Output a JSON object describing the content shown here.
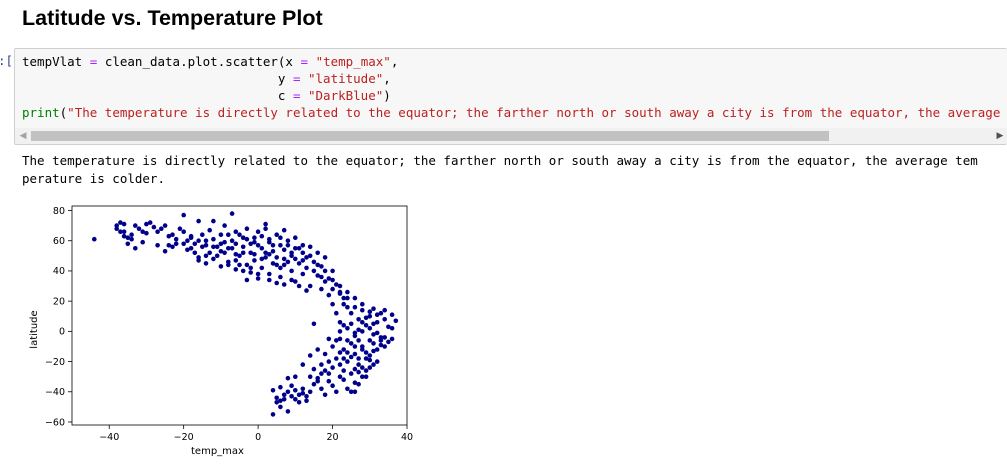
{
  "notebook": {
    "heading": "Latitude vs. Temperature Plot",
    "prompt_fragment": "]:",
    "code": {
      "line1": {
        "var": "tempVlat",
        "eq": "=",
        "call": "clean_data.plot.scatter(x",
        "eq2": "=",
        "arg": "\"temp_max\"",
        "end": ","
      },
      "line2": {
        "key": "y",
        "eq": "=",
        "arg": "\"latitude\"",
        "end": ","
      },
      "line3": {
        "key": "c",
        "eq": "=",
        "arg": "\"DarkBlue\"",
        "end": ")"
      },
      "line4": {
        "fn": "print",
        "paren": "(",
        "arg": "\"The temperature is directly related to the equator; the farther north or south away a city is from the equator, the average temperature is colder.\"",
        "end": ")"
      }
    },
    "output_line1": "The temperature is directly related to the equator; the farther north or south away a city is from the equator, the average tem",
    "output_line2": "perature is colder.",
    "scroll_left_icon": "◀",
    "scroll_right_icon": "▶"
  },
  "chart_data": {
    "type": "scatter",
    "xlabel": "temp_max",
    "ylabel": "latitude",
    "xlim": [
      -50,
      40
    ],
    "ylim": [
      -62,
      83
    ],
    "xticks": [
      -40,
      -20,
      0,
      20,
      40
    ],
    "xtick_labels": [
      "−40",
      "−20",
      "0",
      "20",
      "40"
    ],
    "yticks": [
      80,
      60,
      40,
      20,
      0,
      -20,
      -40,
      -60
    ],
    "ytick_labels": [
      "80",
      "60",
      "40",
      "20",
      "0",
      "−20",
      "−40",
      "−60"
    ],
    "color": "#00008b",
    "grid": false,
    "points": [
      [
        -44,
        61
      ],
      [
        -38,
        68
      ],
      [
        -37,
        72
      ],
      [
        -37,
        66
      ],
      [
        -36,
        71
      ],
      [
        -36,
        63
      ],
      [
        -35,
        62
      ],
      [
        -35,
        58
      ],
      [
        -34,
        64
      ],
      [
        -33,
        70
      ],
      [
        -33,
        55
      ],
      [
        -32,
        68
      ],
      [
        -31,
        66
      ],
      [
        -30,
        71
      ],
      [
        -29,
        72
      ],
      [
        -28,
        69
      ],
      [
        -27,
        66
      ],
      [
        -26,
        68
      ],
      [
        -25,
        70
      ],
      [
        -24,
        63
      ],
      [
        -23,
        64
      ],
      [
        -23,
        56
      ],
      [
        -22,
        58
      ],
      [
        -21,
        68
      ],
      [
        -20,
        66
      ],
      [
        -19,
        60
      ],
      [
        -19,
        54
      ],
      [
        -18,
        63
      ],
      [
        -17,
        58
      ],
      [
        -17,
        52
      ],
      [
        -16,
        49
      ],
      [
        -15,
        56
      ],
      [
        -14,
        60
      ],
      [
        -14,
        45
      ],
      [
        -13,
        52
      ],
      [
        -12,
        61
      ],
      [
        -12,
        48
      ],
      [
        -11,
        56
      ],
      [
        -10,
        64
      ],
      [
        -10,
        43
      ],
      [
        -9,
        70
      ],
      [
        -9,
        59
      ],
      [
        -9,
        52
      ],
      [
        -8,
        64
      ],
      [
        -8,
        46
      ],
      [
        -7,
        60
      ],
      [
        -7,
        55
      ],
      [
        -6,
        66
      ],
      [
        -6,
        41
      ],
      [
        -5,
        50
      ],
      [
        -4,
        62
      ],
      [
        -4,
        56
      ],
      [
        -3,
        68
      ],
      [
        -3,
        44
      ],
      [
        -2,
        52
      ],
      [
        -2,
        39
      ],
      [
        -1,
        59
      ],
      [
        -1,
        47
      ],
      [
        0,
        66
      ],
      [
        0,
        35
      ],
      [
        1,
        55
      ],
      [
        1,
        42
      ],
      [
        2,
        68
      ],
      [
        2,
        49
      ],
      [
        3,
        61
      ],
      [
        3,
        38
      ],
      [
        4,
        53
      ],
      [
        5,
        64
      ],
      [
        5,
        44
      ],
      [
        6,
        57
      ],
      [
        6,
        36
      ],
      [
        7,
        67
      ],
      [
        7,
        48
      ],
      [
        8,
        60
      ],
      [
        9,
        52
      ],
      [
        9,
        40
      ],
      [
        10,
        62
      ],
      [
        10,
        33
      ],
      [
        11,
        55
      ],
      [
        11,
        45
      ],
      [
        12,
        57
      ],
      [
        12,
        38
      ],
      [
        13,
        49
      ],
      [
        14,
        56
      ],
      [
        14,
        30
      ],
      [
        15,
        46
      ],
      [
        16,
        52
      ],
      [
        16,
        37
      ],
      [
        17,
        43
      ],
      [
        17,
        28
      ],
      [
        18,
        49
      ],
      [
        19,
        35
      ],
      [
        19,
        24
      ],
      [
        20,
        40
      ],
      [
        20,
        18
      ],
      [
        21,
        31
      ],
      [
        21,
        12
      ],
      [
        22,
        25
      ],
      [
        22,
        6
      ],
      [
        22,
        -5
      ],
      [
        23,
        18
      ],
      [
        23,
        -12
      ],
      [
        24,
        22
      ],
      [
        24,
        2
      ],
      [
        24,
        -20
      ],
      [
        25,
        12
      ],
      [
        25,
        -8
      ],
      [
        25,
        -28
      ],
      [
        26,
        16
      ],
      [
        26,
        -3
      ],
      [
        26,
        -15
      ],
      [
        27,
        8
      ],
      [
        27,
        -22
      ],
      [
        27,
        -35
      ],
      [
        28,
        14
      ],
      [
        28,
        0
      ],
      [
        28,
        -10
      ],
      [
        29,
        4
      ],
      [
        29,
        -18
      ],
      [
        29,
        -30
      ],
      [
        30,
        10
      ],
      [
        30,
        -6
      ],
      [
        30,
        -24
      ],
      [
        31,
        15
      ],
      [
        31,
        -2
      ],
      [
        31,
        -13
      ],
      [
        32,
        6
      ],
      [
        32,
        -20
      ],
      [
        33,
        12
      ],
      [
        33,
        -4
      ],
      [
        34,
        8
      ],
      [
        34,
        -10
      ],
      [
        35,
        3
      ],
      [
        36,
        11
      ],
      [
        36,
        -5
      ],
      [
        37,
        7
      ],
      [
        15,
        5
      ],
      [
        14,
        -16
      ],
      [
        12,
        -22
      ],
      [
        10,
        -30
      ],
      [
        9,
        -36
      ],
      [
        8,
        -40
      ],
      [
        7,
        -45
      ],
      [
        6,
        -50
      ],
      [
        5,
        -47
      ],
      [
        4,
        -55
      ],
      [
        8,
        -53
      ],
      [
        11,
        -42
      ],
      [
        12,
        -38
      ],
      [
        16,
        -33
      ],
      [
        18,
        -26
      ],
      [
        19,
        -28
      ],
      [
        20,
        -36
      ],
      [
        21,
        -40
      ],
      [
        22,
        -30
      ],
      [
        23,
        -32
      ],
      [
        24,
        -38
      ],
      [
        25,
        -40
      ],
      [
        26,
        -34
      ],
      [
        18,
        -42
      ],
      [
        17,
        -38
      ],
      [
        19,
        -33
      ],
      [
        13,
        -46
      ],
      [
        11,
        -47
      ],
      [
        10,
        -45
      ],
      [
        6,
        -46
      ],
      [
        16,
        -12
      ],
      [
        15,
        -25
      ],
      [
        14,
        -30
      ],
      [
        20,
        -10
      ],
      [
        21,
        -18
      ],
      [
        19,
        -5
      ],
      [
        17,
        -22
      ],
      [
        18,
        -15
      ],
      [
        -12,
        73
      ],
      [
        -7,
        78
      ],
      [
        -20,
        77
      ],
      [
        -16,
        73
      ],
      [
        2,
        71
      ],
      [
        -1,
        62
      ],
      [
        -5,
        64
      ],
      [
        -2,
        58
      ],
      [
        4,
        57
      ],
      [
        7,
        54
      ],
      [
        9,
        50
      ],
      [
        12,
        47
      ],
      [
        13,
        42
      ],
      [
        15,
        40
      ],
      [
        17,
        36
      ],
      [
        18,
        33
      ],
      [
        20,
        28
      ],
      [
        22,
        26
      ],
      [
        23,
        22
      ],
      [
        24,
        16
      ],
      [
        25,
        5
      ],
      [
        26,
        -1
      ],
      [
        27,
        -6
      ],
      [
        28,
        -12
      ],
      [
        29,
        -14
      ],
      [
        30,
        -16
      ],
      [
        31,
        -8
      ],
      [
        32,
        -12
      ],
      [
        33,
        -6
      ],
      [
        24,
        -6
      ],
      [
        25,
        -17
      ],
      [
        26,
        -25
      ],
      [
        27,
        -27
      ],
      [
        28,
        -24
      ],
      [
        29,
        -26
      ],
      [
        30,
        -19
      ],
      [
        31,
        -22
      ],
      [
        23,
        -18
      ],
      [
        22,
        -22
      ],
      [
        24,
        -14
      ],
      [
        26,
        -10
      ],
      [
        27,
        1
      ],
      [
        28,
        6
      ],
      [
        29,
        9
      ],
      [
        30,
        2
      ],
      [
        31,
        5
      ],
      [
        32,
        -1
      ],
      [
        33,
        -9
      ],
      [
        34,
        -4
      ],
      [
        35,
        -7
      ],
      [
        36,
        2
      ],
      [
        -18,
        55
      ],
      [
        -14,
        57
      ],
      [
        -11,
        50
      ],
      [
        -8,
        44
      ],
      [
        -6,
        47
      ],
      [
        -4,
        40
      ],
      [
        -2,
        42
      ],
      [
        0,
        38
      ],
      [
        3,
        34
      ],
      [
        5,
        32
      ],
      [
        7,
        31
      ],
      [
        9,
        34
      ],
      [
        11,
        30
      ],
      [
        13,
        27
      ],
      [
        -3,
        34
      ],
      [
        -10,
        58
      ],
      [
        -15,
        64
      ],
      [
        -13,
        67
      ],
      [
        -6,
        58
      ],
      [
        -3,
        61
      ],
      [
        1,
        63
      ],
      [
        3,
        59
      ],
      [
        6,
        62
      ],
      [
        8,
        57
      ],
      [
        10,
        55
      ],
      [
        4,
        45
      ],
      [
        6,
        42
      ],
      [
        8,
        46
      ],
      [
        2,
        52
      ],
      [
        0,
        57
      ],
      [
        -4,
        52
      ],
      [
        -8,
        55
      ],
      [
        -12,
        56
      ],
      [
        -16,
        60
      ],
      [
        -25,
        53
      ],
      [
        -27,
        57
      ],
      [
        -30,
        65
      ],
      [
        -34,
        61
      ],
      [
        -36,
        66
      ],
      [
        -38,
        70
      ],
      [
        -31,
        59
      ],
      [
        -24,
        57
      ],
      [
        -22,
        61
      ],
      [
        -20,
        58
      ],
      [
        -18,
        62
      ],
      [
        -16,
        47
      ],
      [
        -14,
        50
      ],
      [
        -10,
        53
      ],
      [
        -6,
        51
      ],
      [
        -5,
        44
      ],
      [
        -1,
        51
      ],
      [
        1,
        48
      ],
      [
        3,
        51
      ],
      [
        5,
        49
      ],
      [
        7,
        44
      ],
      [
        10,
        48
      ],
      [
        12,
        52
      ],
      [
        14,
        50
      ],
      [
        16,
        44
      ],
      [
        18,
        40
      ],
      [
        20,
        34
      ],
      [
        22,
        30
      ],
      [
        24,
        26
      ],
      [
        26,
        22
      ],
      [
        28,
        18
      ],
      [
        30,
        13
      ],
      [
        32,
        11
      ],
      [
        34,
        14
      ],
      [
        26,
        -40
      ],
      [
        27,
        -18
      ],
      [
        28,
        -30
      ],
      [
        23,
        -26
      ],
      [
        22,
        -14
      ],
      [
        21,
        -6
      ],
      [
        22,
        0
      ],
      [
        23,
        4
      ],
      [
        20,
        -24
      ],
      [
        19,
        -20
      ],
      [
        17,
        -28
      ],
      [
        16,
        -31
      ],
      [
        15,
        -35
      ],
      [
        14,
        -40
      ],
      [
        13,
        -43
      ],
      [
        12,
        -41
      ],
      [
        10,
        -39
      ],
      [
        9,
        -43
      ],
      [
        7,
        -42
      ],
      [
        5,
        -44
      ],
      [
        4,
        -39
      ],
      [
        6,
        -37
      ],
      [
        8,
        -31
      ]
    ]
  }
}
